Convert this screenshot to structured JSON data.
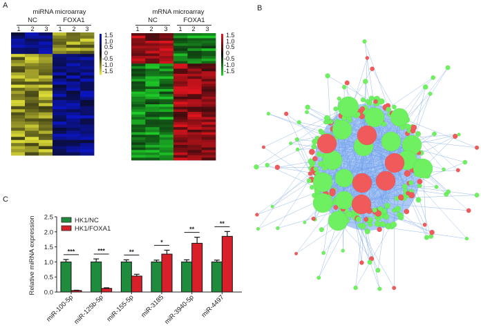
{
  "panels": {
    "a_label": "A",
    "b_label": "B",
    "c_label": "C"
  },
  "heatmap_mirna": {
    "title": "miRNA microarray",
    "groups": [
      "NC",
      "FOXA1"
    ],
    "replicates": [
      "1",
      "2",
      "3",
      "1",
      "2",
      "3"
    ],
    "scale_labels": [
      "1.5",
      "1.0",
      "0.5",
      "0",
      "-0.5",
      "-1.0",
      "-1.5"
    ],
    "high_color": "#0b16c8",
    "mid_color": "#0a0a0a",
    "low_color": "#e6e63a",
    "up_rows": 7,
    "down_rows": 33
  },
  "heatmap_mrna": {
    "title": "mRNA microarray",
    "groups": [
      "NC",
      "FOXA1"
    ],
    "replicates": [
      "1",
      "2",
      "3",
      "1",
      "2",
      "3"
    ],
    "scale_labels": [
      "1.5",
      "1.0",
      "0.5",
      "0",
      "-0.5",
      "-1.0",
      "-1.5"
    ],
    "high_color": "#e8141e",
    "mid_color": "#0a0a0a",
    "low_color": "#1fd22a",
    "up_rows": 12,
    "down_rows": 38
  },
  "network": {
    "mirna_color": "#f05a5a",
    "gene_color": "#6ef060",
    "edge_color": "#7aa6e6",
    "hub_genes": 15,
    "hub_mirnas": 6
  },
  "chart_data": {
    "type": "bar",
    "title": "",
    "xlabel": "",
    "ylabel": "Relative miRNA expression",
    "ylim": [
      0,
      2.5
    ],
    "yticks": [
      "0.0",
      "0.5",
      "1.0",
      "1.5",
      "2.0",
      "2.5"
    ],
    "categories": [
      "miR-100-5p",
      "miR-125b-5p",
      "miR-155-5p",
      "miR-3185",
      "miR-3940-5p",
      "miR-4497"
    ],
    "series": [
      {
        "name": "HK1/NC",
        "color": "#1e8c3c",
        "values": [
          1.0,
          1.0,
          1.0,
          1.0,
          1.0,
          1.0
        ],
        "errors": [
          0.08,
          0.1,
          0.07,
          0.06,
          0.07,
          0.06
        ]
      },
      {
        "name": "HK1/FOXA1",
        "color": "#d7202a",
        "values": [
          0.05,
          0.12,
          0.53,
          1.26,
          1.62,
          1.85
        ],
        "errors": [
          0.01,
          0.02,
          0.06,
          0.13,
          0.2,
          0.16
        ]
      }
    ],
    "significance": [
      "***",
      "***",
      "**",
      "*",
      "**",
      "**"
    ],
    "legend": {
      "position": "top-left",
      "entries": [
        "HK1/NC",
        "HK1/FOXA1"
      ]
    },
    "grid": false
  }
}
